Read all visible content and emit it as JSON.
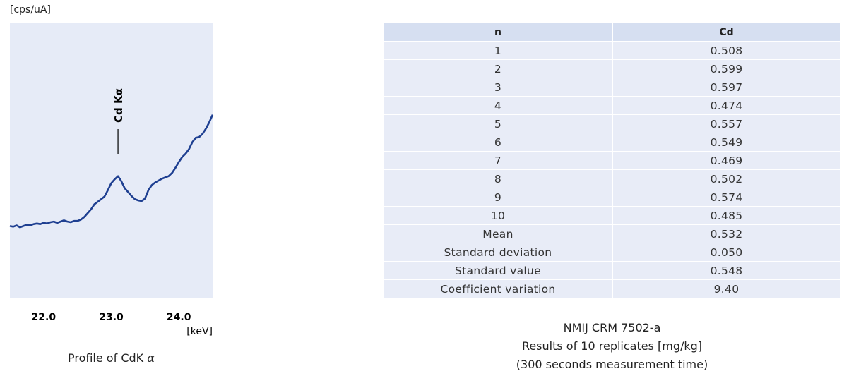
{
  "chart_data": {
    "type": "line",
    "title": "",
    "ylabel": "[cps/uA]",
    "xlabel": "[keV]",
    "x_ticks": [
      "22.0",
      "23.0",
      "24.0"
    ],
    "xlim": [
      21.5,
      24.5
    ],
    "peak_label": "Cd Kα",
    "peak_x": 23.1,
    "grid": false,
    "x": [
      21.5,
      21.55,
      21.6,
      21.65,
      21.7,
      21.75,
      21.8,
      21.85,
      21.9,
      21.95,
      22.0,
      22.05,
      22.1,
      22.15,
      22.2,
      22.25,
      22.3,
      22.35,
      22.4,
      22.45,
      22.5,
      22.55,
      22.6,
      22.65,
      22.7,
      22.75,
      22.8,
      22.85,
      22.9,
      22.95,
      23.0,
      23.05,
      23.1,
      23.15,
      23.2,
      23.25,
      23.3,
      23.35,
      23.4,
      23.45,
      23.5,
      23.55,
      23.6,
      23.65,
      23.7,
      23.75,
      23.8,
      23.85,
      23.9,
      23.95,
      24.0,
      24.05,
      24.1,
      24.15,
      24.2,
      24.25,
      24.3,
      24.35,
      24.4,
      24.45,
      24.5
    ],
    "y": [
      11.2,
      11.1,
      11.3,
      11.0,
      11.2,
      11.4,
      11.3,
      11.5,
      11.6,
      11.5,
      11.7,
      11.6,
      11.8,
      11.9,
      11.7,
      11.9,
      12.1,
      11.9,
      11.8,
      12.0,
      12.0,
      12.2,
      12.6,
      13.2,
      13.8,
      14.6,
      15.0,
      15.4,
      15.8,
      16.8,
      17.9,
      18.5,
      19.0,
      18.2,
      17.1,
      16.5,
      15.9,
      15.4,
      15.2,
      15.1,
      15.5,
      16.8,
      17.6,
      18.0,
      18.3,
      18.6,
      18.8,
      19.0,
      19.5,
      20.3,
      21.2,
      22.0,
      22.5,
      23.2,
      24.3,
      25.0,
      25.1,
      25.6,
      26.4,
      27.4,
      28.6
    ],
    "ylim": [
      0,
      43
    ]
  },
  "table": {
    "headers": [
      "n",
      "Cd"
    ],
    "rows": [
      [
        "1",
        "0.508"
      ],
      [
        "2",
        "0.599"
      ],
      [
        "3",
        "0.597"
      ],
      [
        "4",
        "0.474"
      ],
      [
        "5",
        "0.557"
      ],
      [
        "6",
        "0.549"
      ],
      [
        "7",
        "0.469"
      ],
      [
        "8",
        "0.502"
      ],
      [
        "9",
        "0.574"
      ],
      [
        "10",
        "0.485"
      ],
      [
        "Mean",
        "0.532"
      ],
      [
        "Standard deviation",
        "0.050"
      ],
      [
        "Standard value",
        "0.548"
      ],
      [
        "Coefficient variation",
        "9.40"
      ]
    ]
  },
  "captions": {
    "left_text": "Profile of CdK ",
    "left_symbol": "α",
    "right_line1": "NMIJ CRM 7502-a",
    "right_line2": "Results of 10 replicates [mg/kg]",
    "right_line3": "(300 seconds measurement time)"
  },
  "colors": {
    "plot_bg": "#e6ebf7",
    "line": "#1e3f91",
    "table_header_bg": "#d6dff1",
    "table_cell_bg": "#e8ecf7"
  }
}
